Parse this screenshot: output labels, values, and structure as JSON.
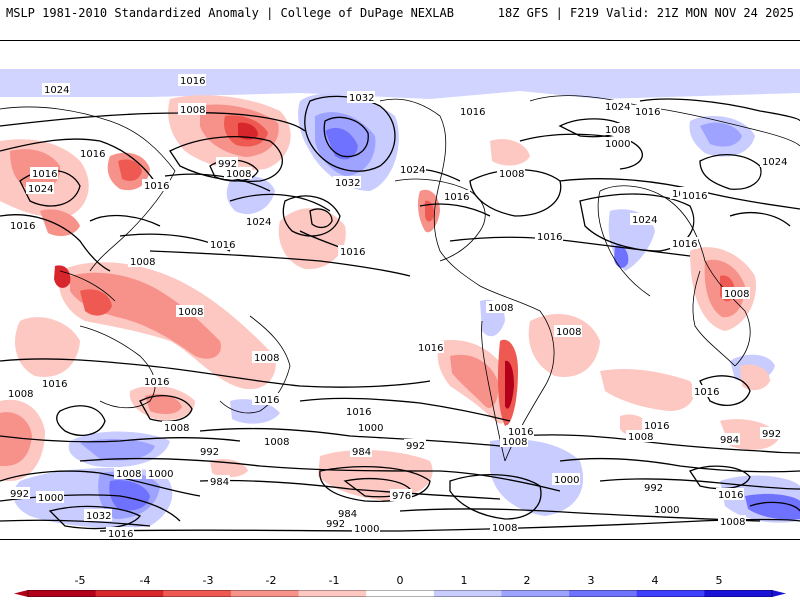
{
  "header": {
    "left_title": "MSLP 1981-2010 Standardized Anomaly | College of DuPage NEXLAB",
    "right_title": "18Z GFS | F219 Valid: 21Z MON NOV 24 2025"
  },
  "colorbar": {
    "ticks": [
      "-5",
      "-4",
      "-3",
      "-2",
      "-1",
      "0",
      "1",
      "2",
      "3",
      "4",
      "5"
    ],
    "colors": [
      "#b2001a",
      "#d7262c",
      "#ee5a52",
      "#f7928a",
      "#fdc7c2",
      "#ffffff",
      "#c9ccff",
      "#9ea3ff",
      "#6f72ff",
      "#3f3fff",
      "#1a12d6"
    ]
  },
  "contour_labels": [
    {
      "id": "l1024-nw",
      "text": "1024"
    },
    {
      "id": "l1016-npac",
      "text": "1016"
    },
    {
      "id": "l1032-gulf",
      "text": "1032"
    },
    {
      "id": "l1032-ak",
      "text": "1032"
    },
    {
      "id": "l1016-arc",
      "text": "1016"
    },
    {
      "id": "l1024-arc",
      "text": "1024"
    },
    {
      "id": "l1016-arc2",
      "text": "1016"
    },
    {
      "id": "l1008-eur",
      "text": "1008"
    },
    {
      "id": "l1000-eur",
      "text": "1000"
    },
    {
      "id": "l1024-e",
      "text": "1024"
    },
    {
      "id": "l1016-siber",
      "text": "1016"
    },
    {
      "id": "l1008-asia",
      "text": "1008"
    },
    {
      "id": "l992-asia",
      "text": "992"
    },
    {
      "id": "l1008-asia2",
      "text": "1008"
    },
    {
      "id": "l1016-w1",
      "text": "1016"
    },
    {
      "id": "l1016-w2",
      "text": "1016"
    },
    {
      "id": "l1024-w",
      "text": "1024"
    },
    {
      "id": "l1016-w3",
      "text": "1016"
    },
    {
      "id": "l1016-w4",
      "text": "1016"
    },
    {
      "id": "l1024-pac",
      "text": "1024"
    },
    {
      "id": "l1016-pac",
      "text": "1016"
    },
    {
      "id": "l1016-pac2",
      "text": "1016"
    },
    {
      "id": "l1024-usa",
      "text": "1024"
    },
    {
      "id": "l1016-usa",
      "text": "1016"
    },
    {
      "id": "l1008-atl",
      "text": "1008"
    },
    {
      "id": "l1016-atl",
      "text": "1016"
    },
    {
      "id": "l1016-afr",
      "text": "1016"
    },
    {
      "id": "l1024-afr",
      "text": "1024"
    },
    {
      "id": "l1016-afr2",
      "text": "1016"
    },
    {
      "id": "l1008-ind",
      "text": "1008"
    },
    {
      "id": "l1008-sea",
      "text": "1008"
    },
    {
      "id": "l1008-sea2",
      "text": "1008"
    },
    {
      "id": "l1008-aus",
      "text": "1008"
    },
    {
      "id": "l1016-aus",
      "text": "1016"
    },
    {
      "id": "l1016-ind2",
      "text": "1016"
    },
    {
      "id": "l1008-w",
      "text": "1008"
    },
    {
      "id": "l1016-spac",
      "text": "1016"
    },
    {
      "id": "l1008-sam",
      "text": "1008"
    },
    {
      "id": "l1008-sam2",
      "text": "1008"
    },
    {
      "id": "l1016-sam",
      "text": "1016"
    },
    {
      "id": "l1016-satl",
      "text": "1016"
    },
    {
      "id": "l1016-safr",
      "text": "1016"
    },
    {
      "id": "l1008-sind",
      "text": "1008"
    },
    {
      "id": "l1016-spac2",
      "text": "1016"
    },
    {
      "id": "l1008-spac",
      "text": "1008"
    },
    {
      "id": "l1008-sw",
      "text": "1008"
    },
    {
      "id": "l1000-s",
      "text": "1000"
    },
    {
      "id": "l992-s",
      "text": "992"
    },
    {
      "id": "l984-s",
      "text": "984"
    },
    {
      "id": "l984-s2",
      "text": "984"
    },
    {
      "id": "l992-s2",
      "text": "992"
    },
    {
      "id": "l976-s",
      "text": "976"
    },
    {
      "id": "l984-s3",
      "text": "984"
    },
    {
      "id": "l992-s3",
      "text": "992"
    },
    {
      "id": "l1000-s2",
      "text": "1000"
    },
    {
      "id": "l1008-s2",
      "text": "1008"
    },
    {
      "id": "l1016-s3",
      "text": "1016"
    },
    {
      "id": "l1000-e",
      "text": "1000"
    },
    {
      "id": "l992-e",
      "text": "992"
    },
    {
      "id": "l1000-e2",
      "text": "1000"
    },
    {
      "id": "l984-e",
      "text": "984"
    },
    {
      "id": "l992-e2",
      "text": "992"
    },
    {
      "id": "l1008-e2",
      "text": "1008"
    },
    {
      "id": "l1016-e3",
      "text": "1016"
    },
    {
      "id": "l992-w",
      "text": "992"
    },
    {
      "id": "l1000-w",
      "text": "1000"
    },
    {
      "id": "l1008-w2",
      "text": "1008"
    },
    {
      "id": "l1000-w2",
      "text": "1000"
    },
    {
      "id": "l1032-w",
      "text": "1032"
    },
    {
      "id": "l1016-w5",
      "text": "1016"
    },
    {
      "id": "l1008-se",
      "text": "1008"
    }
  ]
}
